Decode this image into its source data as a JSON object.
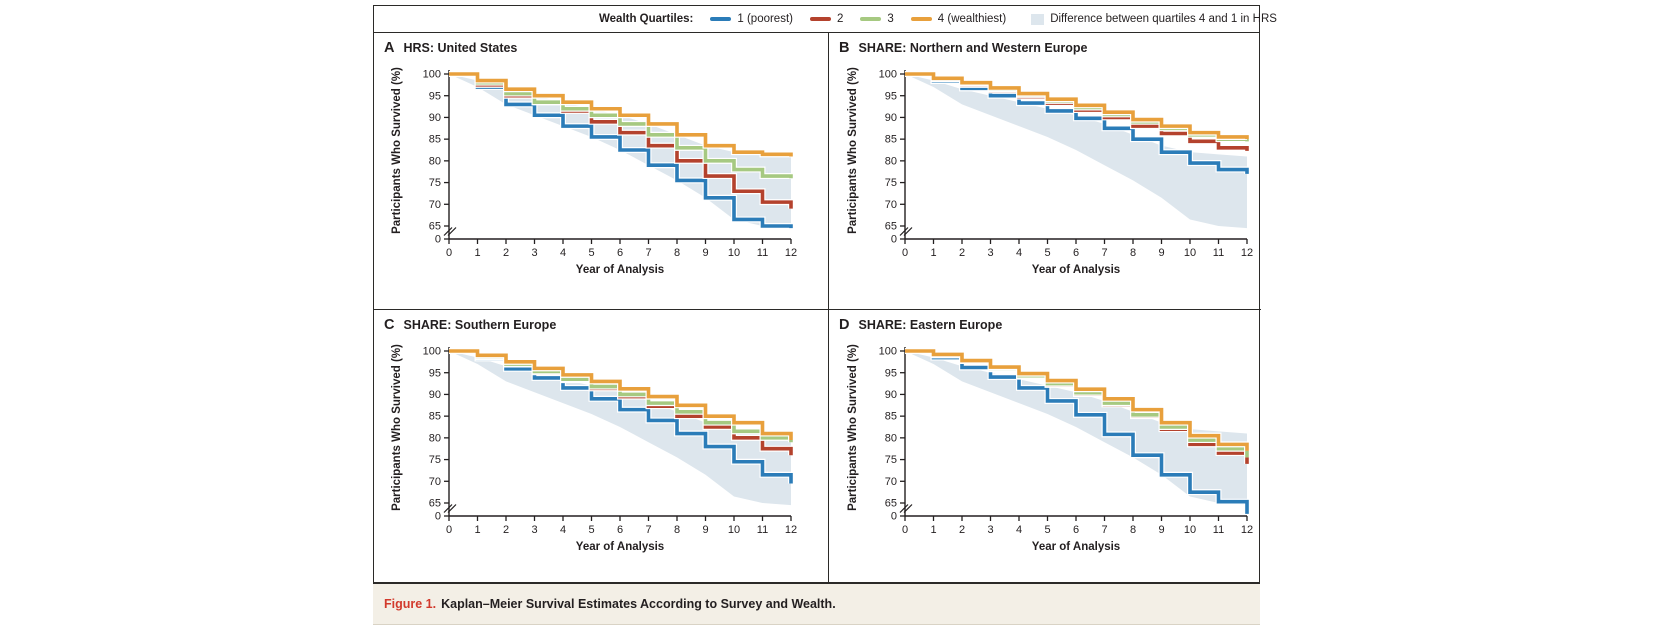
{
  "figure": {
    "legend": {
      "title": "Wealth Quartiles:",
      "series": [
        {
          "label": "1 (poorest)",
          "color": "#2b7cb8"
        },
        {
          "label": "2",
          "color": "#b4422d"
        },
        {
          "label": "3",
          "color": "#a6c981"
        },
        {
          "label": "4 (wealthiest)",
          "color": "#e8a03c"
        }
      ],
      "band": {
        "label": "Difference between quartiles 4 and 1 in HRS",
        "color": "#dde6ed"
      }
    },
    "caption": {
      "label": "Figure 1.",
      "label_color": "#d23a2c",
      "text": "Kaplan–Meier Survival Estimates According to Survey and Wealth.",
      "background": "#f3efe6"
    },
    "text_color": "#231f20"
  },
  "chart_data": [
    {
      "type": "line",
      "subtype": "kaplan-meier-step",
      "panel_letter": "A",
      "title": "HRS: United States",
      "xlabel": "Year of Analysis",
      "ylabel": "Participants Who Survived (%)",
      "x_ticks": [
        0,
        1,
        2,
        3,
        4,
        5,
        6,
        7,
        8,
        9,
        10,
        11,
        12
      ],
      "y_ticks": [
        0,
        65,
        70,
        75,
        80,
        85,
        90,
        95,
        100
      ],
      "y_axis_break": true,
      "ylim": [
        62,
        100
      ],
      "grid": false,
      "years": [
        0,
        1,
        2,
        3,
        4,
        5,
        6,
        7,
        8,
        9,
        10,
        11,
        12
      ],
      "series": [
        {
          "name": "1 (poorest)",
          "color": "#2b7cb8",
          "values": [
            100,
            97,
            93,
            90.5,
            88,
            85.5,
            82.5,
            79,
            75.5,
            71.5,
            66.5,
            65,
            64.5
          ]
        },
        {
          "name": "2",
          "color": "#b4422d",
          "values": [
            100,
            97.5,
            95,
            93.5,
            91.5,
            89,
            86.5,
            83.5,
            80,
            76.5,
            73,
            70.5,
            69
          ]
        },
        {
          "name": "3",
          "color": "#a6c981",
          "values": [
            100,
            98,
            95.5,
            93.5,
            92,
            90.5,
            88.5,
            86,
            83,
            80,
            78,
            76.5,
            76
          ]
        },
        {
          "name": "4 (wealthiest)",
          "color": "#e8a03c",
          "values": [
            100,
            98.5,
            96.5,
            95,
            93.5,
            92,
            90.5,
            88.5,
            86,
            83.5,
            82,
            81.5,
            81
          ]
        }
      ],
      "band": {
        "label": "Difference between quartiles 4 and 1 in HRS",
        "color": "#dde6ed",
        "upper": [
          100,
          98.5,
          96.5,
          95,
          93.5,
          92,
          90.5,
          88.5,
          86,
          83.5,
          82,
          81.5,
          81
        ],
        "lower": [
          100,
          97,
          93,
          90.5,
          88,
          85.5,
          82.5,
          79,
          75.5,
          71.5,
          66.5,
          65,
          64.5
        ]
      }
    },
    {
      "type": "line",
      "subtype": "kaplan-meier-step",
      "panel_letter": "B",
      "title": "SHARE: Northern and Western Europe",
      "xlabel": "Year of Analysis",
      "ylabel": "Participants Who Survived (%)",
      "x_ticks": [
        0,
        1,
        2,
        3,
        4,
        5,
        6,
        7,
        8,
        9,
        10,
        11,
        12
      ],
      "y_ticks": [
        0,
        65,
        70,
        75,
        80,
        85,
        90,
        95,
        100
      ],
      "y_axis_break": true,
      "ylim": [
        62,
        100
      ],
      "grid": false,
      "years": [
        0,
        1,
        2,
        3,
        4,
        5,
        6,
        7,
        8,
        9,
        10,
        11,
        12
      ],
      "series": [
        {
          "name": "1 (poorest)",
          "color": "#2b7cb8",
          "values": [
            100,
            98.4,
            96.7,
            95,
            93.3,
            91.5,
            89.8,
            87.5,
            85,
            82,
            79.5,
            78,
            77
          ]
        },
        {
          "name": "2",
          "color": "#b4422d",
          "values": [
            100,
            98.8,
            97.5,
            96.2,
            94.8,
            93.3,
            91.7,
            90,
            88,
            86.3,
            84.5,
            83,
            82.3
          ]
        },
        {
          "name": "3",
          "color": "#a6c981",
          "values": [
            100,
            99,
            97.8,
            96.5,
            95.2,
            93.8,
            92.3,
            90.7,
            89,
            87.5,
            86,
            85,
            84.5
          ]
        },
        {
          "name": "4 (wealthiest)",
          "color": "#e8a03c",
          "values": [
            100,
            99,
            98,
            96.8,
            95.5,
            94.2,
            92.8,
            91.2,
            89.5,
            88,
            86.5,
            85.5,
            85
          ]
        }
      ],
      "band": {
        "label": "Difference between quartiles 4 and 1 in HRS",
        "color": "#dde6ed",
        "upper": [
          100,
          98.5,
          96.5,
          95,
          93.5,
          92,
          90.5,
          88.5,
          86,
          83.5,
          82,
          81.5,
          81
        ],
        "lower": [
          100,
          97,
          93,
          90.5,
          88,
          85.5,
          82.5,
          79,
          75.5,
          71.5,
          66.5,
          65,
          64.5
        ]
      }
    },
    {
      "type": "line",
      "subtype": "kaplan-meier-step",
      "panel_letter": "C",
      "title": "SHARE: Southern Europe",
      "xlabel": "Year of Analysis",
      "ylabel": "Participants Who Survived (%)",
      "x_ticks": [
        0,
        1,
        2,
        3,
        4,
        5,
        6,
        7,
        8,
        9,
        10,
        11,
        12
      ],
      "y_ticks": [
        0,
        65,
        70,
        75,
        80,
        85,
        90,
        95,
        100
      ],
      "y_axis_break": true,
      "ylim": [
        62,
        100
      ],
      "grid": false,
      "years": [
        0,
        1,
        2,
        3,
        4,
        5,
        6,
        7,
        8,
        9,
        10,
        11,
        12
      ],
      "series": [
        {
          "name": "1 (poorest)",
          "color": "#2b7cb8",
          "values": [
            100,
            98.3,
            95.9,
            93.8,
            91.5,
            89,
            86.5,
            84,
            81,
            78,
            74.5,
            71.5,
            69.5
          ]
        },
        {
          "name": "2",
          "color": "#b4422d",
          "values": [
            100,
            98.6,
            96.9,
            95.1,
            93.3,
            91.4,
            89.5,
            87.3,
            85,
            82.5,
            80,
            77.5,
            76
          ]
        },
        {
          "name": "3",
          "color": "#a6c981",
          "values": [
            100,
            98.7,
            97,
            95.3,
            93.5,
            91.8,
            90,
            88,
            86,
            83.5,
            81.5,
            80,
            79
          ]
        },
        {
          "name": "4 (wealthiest)",
          "color": "#e8a03c",
          "values": [
            100,
            99,
            97.5,
            96,
            94.5,
            93,
            91.3,
            89.5,
            87.5,
            85,
            83.5,
            81,
            79.5
          ]
        }
      ],
      "band": {
        "label": "Difference between quartiles 4 and 1 in HRS",
        "color": "#dde6ed",
        "upper": [
          100,
          98.5,
          96.5,
          95,
          93.5,
          92,
          90.5,
          88.5,
          86,
          83.5,
          82,
          81.5,
          81
        ],
        "lower": [
          100,
          97,
          93,
          90.5,
          88,
          85.5,
          82.5,
          79,
          75.5,
          71.5,
          66.5,
          65,
          64.5
        ]
      }
    },
    {
      "type": "line",
      "subtype": "kaplan-meier-step",
      "panel_letter": "D",
      "title": "SHARE: Eastern Europe",
      "xlabel": "Year of Analysis",
      "ylabel": "Participants Who Survived (%)",
      "x_ticks": [
        0,
        1,
        2,
        3,
        4,
        5,
        6,
        7,
        8,
        9,
        10,
        11,
        12
      ],
      "y_ticks": [
        0,
        65,
        70,
        75,
        80,
        85,
        90,
        95,
        100
      ],
      "y_axis_break": true,
      "ylim": [
        62,
        100
      ],
      "grid": false,
      "years": [
        0,
        1,
        2,
        3,
        4,
        5,
        6,
        7,
        8,
        9,
        10,
        11,
        12
      ],
      "series": [
        {
          "name": "1 (poorest)",
          "color": "#2b7cb8",
          "values": [
            100,
            98.5,
            96.2,
            94,
            91.5,
            88.5,
            85.3,
            80.8,
            76,
            71.5,
            67.5,
            65.3,
            62.5
          ]
        },
        {
          "name": "2",
          "color": "#b4422d",
          "values": [
            100,
            99,
            97.7,
            95.8,
            94.1,
            92.2,
            90.1,
            87.7,
            85,
            82,
            78.5,
            76.5,
            74
          ]
        },
        {
          "name": "3",
          "color": "#a6c981",
          "values": [
            100,
            99.1,
            97.9,
            96,
            94.3,
            92.5,
            90.4,
            88,
            85.3,
            82.5,
            79.5,
            77.5,
            75.5
          ]
        },
        {
          "name": "4 (wealthiest)",
          "color": "#e8a03c",
          "values": [
            100,
            99.2,
            97.8,
            96.3,
            94.8,
            93.2,
            91.2,
            89,
            86.5,
            83.5,
            80.5,
            78.5,
            77
          ]
        }
      ],
      "band": {
        "label": "Difference between quartiles 4 and 1 in HRS",
        "color": "#dde6ed",
        "upper": [
          100,
          98.5,
          96.5,
          95,
          93.5,
          92,
          90.5,
          88.5,
          86,
          83.5,
          82,
          81.5,
          81
        ],
        "lower": [
          100,
          97,
          93,
          90.5,
          88,
          85.5,
          82.5,
          79,
          75.5,
          71.5,
          66.5,
          65,
          64.5
        ]
      }
    }
  ]
}
